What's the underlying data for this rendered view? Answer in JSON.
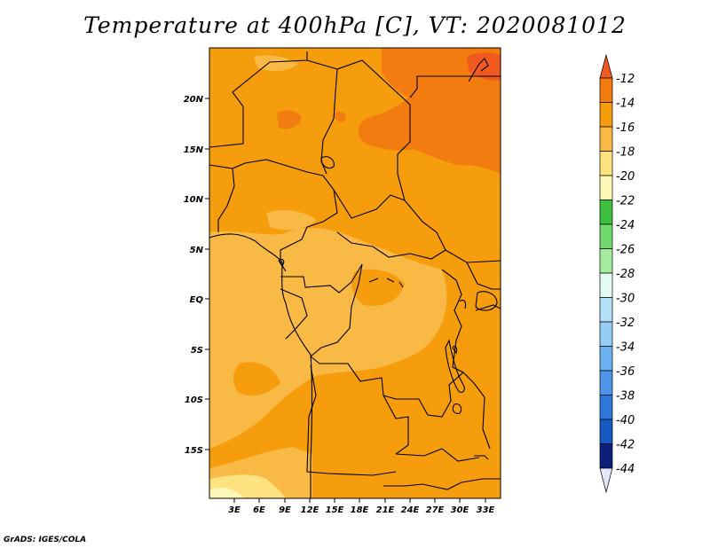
{
  "title": "Temperature at 400hPa [C], VT: 2020081012",
  "credit": "GrADS: IGES/COLA",
  "map": {
    "lat_labels": [
      "20N",
      "15N",
      "10N",
      "5N",
      "EQ",
      "5S",
      "10S",
      "15S"
    ],
    "lon_labels": [
      "3E",
      "6E",
      "9E",
      "12E",
      "15E",
      "18E",
      "21E",
      "24E",
      "27E",
      "30E",
      "33E"
    ]
  },
  "colorbar": {
    "labels": [
      "-12",
      "-14",
      "-16",
      "-18",
      "-20",
      "-22",
      "-24",
      "-26",
      "-28",
      "-30",
      "-32",
      "-34",
      "-36",
      "-38",
      "-40",
      "-42",
      "-44"
    ],
    "colors": {
      "c_gt_12": "#f05a1e",
      "c_12_14": "#f37c10",
      "c_14_16": "#f59d0c",
      "c_16_18": "#f8b945",
      "c_18_20": "#fde27f",
      "c_20_22": "#fef8b6",
      "c_22_24": "#3fbf3f",
      "c_24_26": "#72d96f",
      "c_26_28": "#a6ec9f",
      "c_28_30": "#e2fbf3",
      "c_30_32": "#b4e0f8",
      "c_32_34": "#93cdf5",
      "c_34_36": "#6cb1ef",
      "c_36_38": "#4d95e8",
      "c_38_40": "#2e78da",
      "c_40_42": "#1659c3",
      "c_42_44": "#0a1e7a",
      "c_lt_44": "#e6e6fa"
    }
  }
}
